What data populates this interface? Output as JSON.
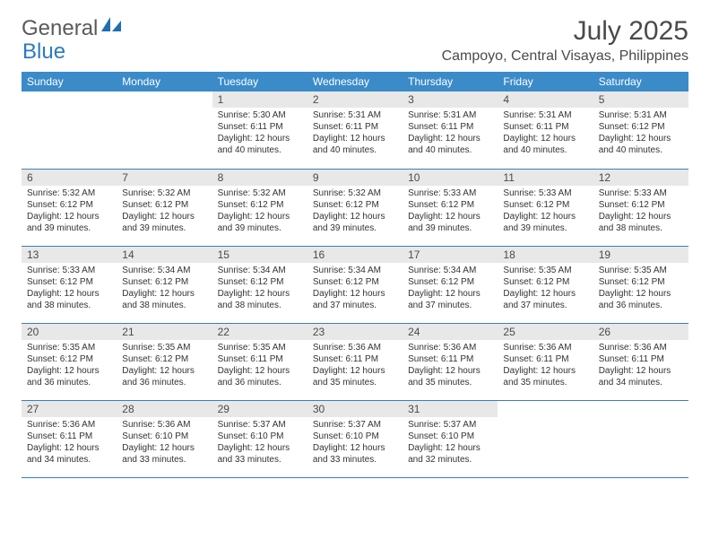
{
  "brand": {
    "part1": "General",
    "part2": "Blue"
  },
  "title": "July 2025",
  "location": "Campoyo, Central Visayas, Philippines",
  "colors": {
    "header_bg": "#3b8bc9",
    "header_text": "#ffffff",
    "daynum_bg": "#e8e8e8",
    "border": "#3b7fb5",
    "brand_gray": "#5a5a5a",
    "brand_blue": "#2b7bbf"
  },
  "day_headers": [
    "Sunday",
    "Monday",
    "Tuesday",
    "Wednesday",
    "Thursday",
    "Friday",
    "Saturday"
  ],
  "weeks": [
    [
      {
        "num": "",
        "lines": []
      },
      {
        "num": "",
        "lines": []
      },
      {
        "num": "1",
        "lines": [
          "Sunrise: 5:30 AM",
          "Sunset: 6:11 PM",
          "Daylight: 12 hours",
          "and 40 minutes."
        ]
      },
      {
        "num": "2",
        "lines": [
          "Sunrise: 5:31 AM",
          "Sunset: 6:11 PM",
          "Daylight: 12 hours",
          "and 40 minutes."
        ]
      },
      {
        "num": "3",
        "lines": [
          "Sunrise: 5:31 AM",
          "Sunset: 6:11 PM",
          "Daylight: 12 hours",
          "and 40 minutes."
        ]
      },
      {
        "num": "4",
        "lines": [
          "Sunrise: 5:31 AM",
          "Sunset: 6:11 PM",
          "Daylight: 12 hours",
          "and 40 minutes."
        ]
      },
      {
        "num": "5",
        "lines": [
          "Sunrise: 5:31 AM",
          "Sunset: 6:12 PM",
          "Daylight: 12 hours",
          "and 40 minutes."
        ]
      }
    ],
    [
      {
        "num": "6",
        "lines": [
          "Sunrise: 5:32 AM",
          "Sunset: 6:12 PM",
          "Daylight: 12 hours",
          "and 39 minutes."
        ]
      },
      {
        "num": "7",
        "lines": [
          "Sunrise: 5:32 AM",
          "Sunset: 6:12 PM",
          "Daylight: 12 hours",
          "and 39 minutes."
        ]
      },
      {
        "num": "8",
        "lines": [
          "Sunrise: 5:32 AM",
          "Sunset: 6:12 PM",
          "Daylight: 12 hours",
          "and 39 minutes."
        ]
      },
      {
        "num": "9",
        "lines": [
          "Sunrise: 5:32 AM",
          "Sunset: 6:12 PM",
          "Daylight: 12 hours",
          "and 39 minutes."
        ]
      },
      {
        "num": "10",
        "lines": [
          "Sunrise: 5:33 AM",
          "Sunset: 6:12 PM",
          "Daylight: 12 hours",
          "and 39 minutes."
        ]
      },
      {
        "num": "11",
        "lines": [
          "Sunrise: 5:33 AM",
          "Sunset: 6:12 PM",
          "Daylight: 12 hours",
          "and 39 minutes."
        ]
      },
      {
        "num": "12",
        "lines": [
          "Sunrise: 5:33 AM",
          "Sunset: 6:12 PM",
          "Daylight: 12 hours",
          "and 38 minutes."
        ]
      }
    ],
    [
      {
        "num": "13",
        "lines": [
          "Sunrise: 5:33 AM",
          "Sunset: 6:12 PM",
          "Daylight: 12 hours",
          "and 38 minutes."
        ]
      },
      {
        "num": "14",
        "lines": [
          "Sunrise: 5:34 AM",
          "Sunset: 6:12 PM",
          "Daylight: 12 hours",
          "and 38 minutes."
        ]
      },
      {
        "num": "15",
        "lines": [
          "Sunrise: 5:34 AM",
          "Sunset: 6:12 PM",
          "Daylight: 12 hours",
          "and 38 minutes."
        ]
      },
      {
        "num": "16",
        "lines": [
          "Sunrise: 5:34 AM",
          "Sunset: 6:12 PM",
          "Daylight: 12 hours",
          "and 37 minutes."
        ]
      },
      {
        "num": "17",
        "lines": [
          "Sunrise: 5:34 AM",
          "Sunset: 6:12 PM",
          "Daylight: 12 hours",
          "and 37 minutes."
        ]
      },
      {
        "num": "18",
        "lines": [
          "Sunrise: 5:35 AM",
          "Sunset: 6:12 PM",
          "Daylight: 12 hours",
          "and 37 minutes."
        ]
      },
      {
        "num": "19",
        "lines": [
          "Sunrise: 5:35 AM",
          "Sunset: 6:12 PM",
          "Daylight: 12 hours",
          "and 36 minutes."
        ]
      }
    ],
    [
      {
        "num": "20",
        "lines": [
          "Sunrise: 5:35 AM",
          "Sunset: 6:12 PM",
          "Daylight: 12 hours",
          "and 36 minutes."
        ]
      },
      {
        "num": "21",
        "lines": [
          "Sunrise: 5:35 AM",
          "Sunset: 6:12 PM",
          "Daylight: 12 hours",
          "and 36 minutes."
        ]
      },
      {
        "num": "22",
        "lines": [
          "Sunrise: 5:35 AM",
          "Sunset: 6:11 PM",
          "Daylight: 12 hours",
          "and 36 minutes."
        ]
      },
      {
        "num": "23",
        "lines": [
          "Sunrise: 5:36 AM",
          "Sunset: 6:11 PM",
          "Daylight: 12 hours",
          "and 35 minutes."
        ]
      },
      {
        "num": "24",
        "lines": [
          "Sunrise: 5:36 AM",
          "Sunset: 6:11 PM",
          "Daylight: 12 hours",
          "and 35 minutes."
        ]
      },
      {
        "num": "25",
        "lines": [
          "Sunrise: 5:36 AM",
          "Sunset: 6:11 PM",
          "Daylight: 12 hours",
          "and 35 minutes."
        ]
      },
      {
        "num": "26",
        "lines": [
          "Sunrise: 5:36 AM",
          "Sunset: 6:11 PM",
          "Daylight: 12 hours",
          "and 34 minutes."
        ]
      }
    ],
    [
      {
        "num": "27",
        "lines": [
          "Sunrise: 5:36 AM",
          "Sunset: 6:11 PM",
          "Daylight: 12 hours",
          "and 34 minutes."
        ]
      },
      {
        "num": "28",
        "lines": [
          "Sunrise: 5:36 AM",
          "Sunset: 6:10 PM",
          "Daylight: 12 hours",
          "and 33 minutes."
        ]
      },
      {
        "num": "29",
        "lines": [
          "Sunrise: 5:37 AM",
          "Sunset: 6:10 PM",
          "Daylight: 12 hours",
          "and 33 minutes."
        ]
      },
      {
        "num": "30",
        "lines": [
          "Sunrise: 5:37 AM",
          "Sunset: 6:10 PM",
          "Daylight: 12 hours",
          "and 33 minutes."
        ]
      },
      {
        "num": "31",
        "lines": [
          "Sunrise: 5:37 AM",
          "Sunset: 6:10 PM",
          "Daylight: 12 hours",
          "and 32 minutes."
        ]
      },
      {
        "num": "",
        "lines": []
      },
      {
        "num": "",
        "lines": []
      }
    ]
  ]
}
